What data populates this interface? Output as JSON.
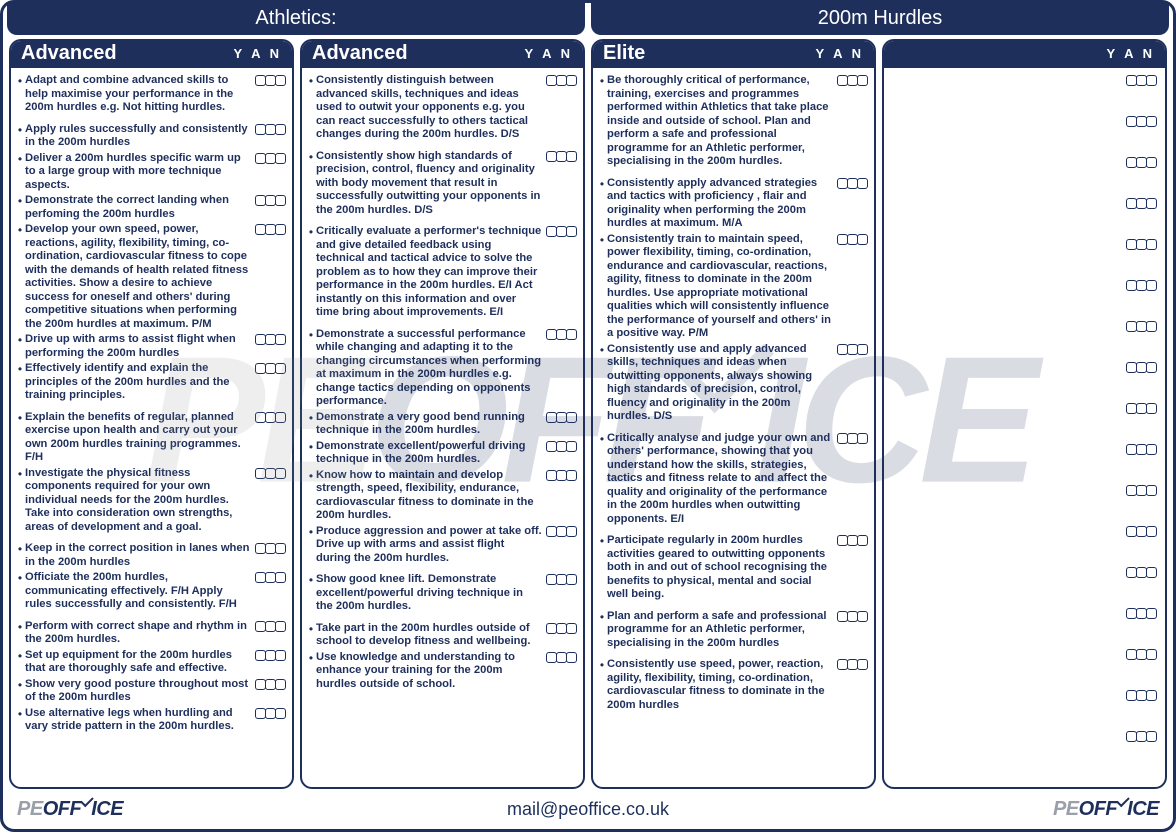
{
  "header": {
    "left": "Athletics:",
    "right": "200m Hurdles"
  },
  "yan_label": "Y A N",
  "footer": {
    "email": "mail@peoffice.co.uk",
    "logo_pe": "PE",
    "logo_off": "OFFICE"
  },
  "columns": [
    {
      "title": "Advanced",
      "items": [
        {
          "text": "Adapt and combine advanced skills to help maximise your performance in the 200m hurdles e.g. Not hitting hurdles.",
          "gap": false
        },
        {
          "text": "Apply rules successfully and consistently in the 200m hurdles",
          "gap": true
        },
        {
          "text": "Deliver a 200m hurdles specific warm up to a large group with more technique aspects.",
          "gap": false
        },
        {
          "text": "Demonstrate the correct landing when perfoming the 200m hurdles",
          "gap": false
        },
        {
          "text": "Develop your own speed, power, reactions, agility, flexibility, timing, co-ordination, cardiovascular fitness to cope with the demands of health related fitness activities. Show a desire to achieve success for oneself and others' during competitive situations when performing the 200m hurdles at maximum. P/M",
          "gap": false
        },
        {
          "text": "Drive up with arms to assist flight when performing the 200m hurdles",
          "gap": false
        },
        {
          "text": "Effectively identify and explain the principles of the 200m hurdles and the training principles.",
          "gap": false
        },
        {
          "text": "Explain the benefits of regular, planned exercise upon health and carry out your own 200m hurdles training programmes. F/H",
          "gap": true
        },
        {
          "text": "Investigate the physical fitness components required for your own individual needs for the 200m hurdles. Take into consideration own strengths, areas of development and a goal.",
          "gap": false
        },
        {
          "text": "Keep in the correct position in lanes when in the 200m hurdles",
          "gap": true
        },
        {
          "text": "Officiate the 200m hurdles, communicating effectively. F/H Apply rules successfully and consistently. F/H",
          "gap": false
        },
        {
          "text": "Perform with correct shape and rhythm in the 200m hurdles.",
          "gap": true
        },
        {
          "text": "Set up equipment for the 200m hurdles that are thoroughly safe and effective.",
          "gap": false
        },
        {
          "text": "Show very good posture throughout most of the 200m hurdles",
          "gap": false
        },
        {
          "text": "Use alternative legs when hurdling and vary stride pattern in the 200m hurdles.",
          "gap": false
        }
      ]
    },
    {
      "title": "Advanced",
      "items": [
        {
          "text": "Consistently distinguish between advanced skills, techniques and ideas used to outwit your opponents e.g. you can react successfully to others tactical changes during the 200m hurdles. D/S",
          "gap": false
        },
        {
          "text": "Consistently show high standards of precision, control, fluency and originality with body movement that result in successfully outwitting your opponents in the 200m hurdles. D/S",
          "gap": true
        },
        {
          "text": "Critically evaluate a performer's technique and give detailed feedback using technical and tactical advice to solve the problem as to how they can improve their performance in the 200m hurdles. E/I Act instantly on this information and over time bring about improvements. E/I",
          "gap": true
        },
        {
          "text": "Demonstrate a successful performance while changing and adapting it to the changing circumstances when performing at maximum in the 200m hurdles e.g. change tactics depending on opponents performance.",
          "gap": true
        },
        {
          "text": "Demonstrate a very good bend running technique in the 200m hurdles.",
          "gap": false
        },
        {
          "text": "Demonstrate excellent/powerful driving technique in the 200m hurdles.",
          "gap": false
        },
        {
          "text": "Know how to maintain and develop strength, speed, flexibility, endurance, cardiovascular fitness to dominate in the 200m hurdles.",
          "gap": false
        },
        {
          "text": "Produce aggression and power at take off. Drive up with arms and assist flight during the 200m hurdles.",
          "gap": false
        },
        {
          "text": "Show good knee lift. Demonstrate excellent/powerful driving technique in the 200m hurdles.",
          "gap": true
        },
        {
          "text": "Take part in the 200m hurdles outside of school to develop fitness and wellbeing.",
          "gap": true
        },
        {
          "text": "Use knowledge and understanding to enhance your training for the 200m hurdles outside of school.",
          "gap": false
        }
      ]
    },
    {
      "title": "Elite",
      "items": [
        {
          "text": "Be thoroughly critical of performance, training, exercises and programmes performed within Athletics that take place inside and outside of school. Plan and perform a safe and professional programme for an Athletic performer, specialising in the 200m hurdles.",
          "gap": false
        },
        {
          "text": "Consistently apply advanced strategies and tactics with proficiency , flair and originality when performing the 200m hurdles at maximum. M/A",
          "gap": true
        },
        {
          "text": "Consistently train to maintain speed, power flexibility, timing, co-ordination, endurance and cardiovascular, reactions, agility, fitness to dominate in the 200m hurdles. Use appropriate motivational qualities which will consistently influence the performance of yourself and others' in a positive way. P/M",
          "gap": false
        },
        {
          "text": "Consistently use and apply advanced skills, techniques and ideas when outwitting opponents, always showing high standards of precision, control, fluency and originality in the 200m hurdles. D/S",
          "gap": false
        },
        {
          "text": "Critically analyse and judge your own and others' performance, showing that you understand how the skills, strategies, tactics and fitness relate to and affect the quality and originality of the performance in the 200m hurdles when outwitting opponents. E/I",
          "gap": true
        },
        {
          "text": "Participate regularly in 200m hurdles activities geared to outwitting opponents both in and out of school recognising the benefits to physical, mental and social well being.",
          "gap": true
        },
        {
          "text": "Plan and perform a safe and professional programme for an Athletic performer, specialising in the 200m hurdles",
          "gap": true
        },
        {
          "text": "Consistently use speed, power, reaction, agility, flexibility, timing, co-ordination, cardiovascular fitness to dominate in the 200m hurdles",
          "gap": true
        }
      ]
    },
    {
      "title": "",
      "empty_rows": 17
    }
  ]
}
